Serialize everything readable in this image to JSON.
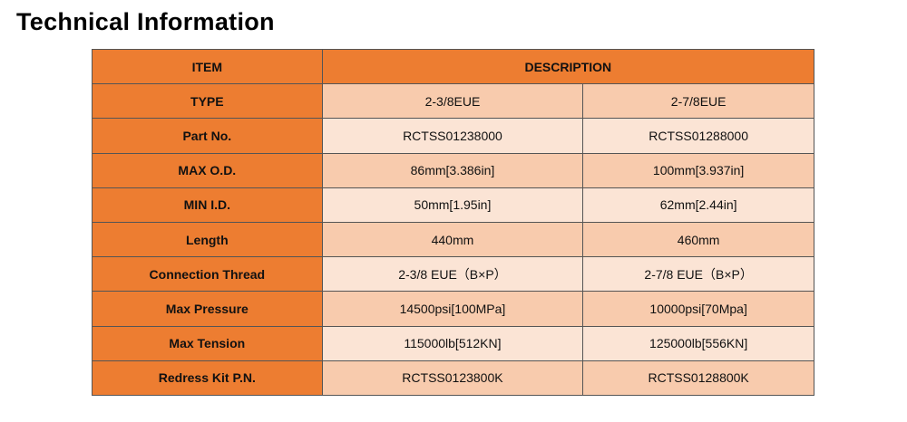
{
  "title": "Technical Information",
  "colors": {
    "header": "#ED7D31",
    "row_dark": "#F8CBAD",
    "row_light": "#FBE4D5"
  },
  "table": {
    "headers": [
      "ITEM",
      "DESCRIPTION"
    ],
    "rows": [
      {
        "label": "TYPE",
        "values": [
          "2-3/8EUE",
          "2-7/8EUE"
        ]
      },
      {
        "label": "Part No.",
        "values": [
          "RCTSS01238000",
          "RCTSS01288000"
        ]
      },
      {
        "label": "MAX O.D.",
        "values": [
          "86mm[3.386in]",
          "100mm[3.937in]"
        ]
      },
      {
        "label": "MIN I.D.",
        "values": [
          "50mm[1.95in]",
          "62mm[2.44in]"
        ]
      },
      {
        "label": "Length",
        "values": [
          "440mm",
          "460mm"
        ]
      },
      {
        "label": "Connection Thread",
        "values": [
          "2-3/8 EUE（B×P）",
          "2-7/8 EUE（B×P）"
        ]
      },
      {
        "label": "Max Pressure",
        "values": [
          "14500psi[100MPa]",
          "10000psi[70Mpa]"
        ]
      },
      {
        "label": "Max Tension",
        "values": [
          "115000lb[512KN]",
          "125000lb[556KN]"
        ]
      },
      {
        "label": "Redress Kit P.N.",
        "values": [
          "RCTSS0123800K",
          "RCTSS0128800K"
        ]
      }
    ]
  }
}
